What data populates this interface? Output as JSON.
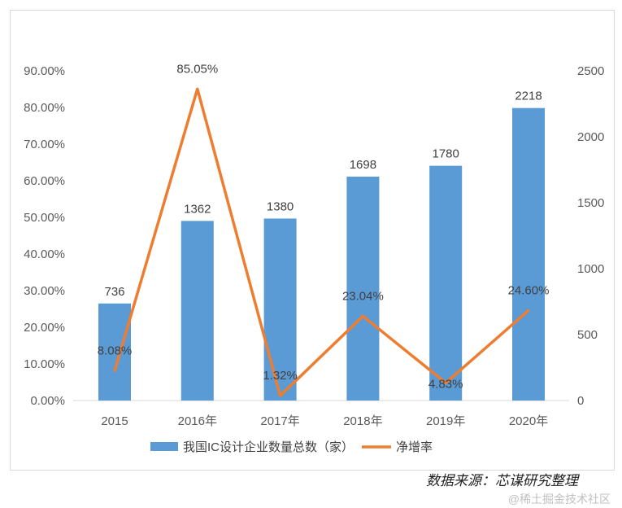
{
  "chart_data": {
    "type": "bar+line",
    "categories": [
      "2015",
      "2016年",
      "2017年",
      "2018年",
      "2019年",
      "2020年"
    ],
    "series": [
      {
        "name": "我国IC设计企业数量总数（家）",
        "type": "bar",
        "axis": "right",
        "values": [
          736,
          1362,
          1380,
          1698,
          1780,
          2218
        ],
        "labels": [
          "736",
          "1362",
          "1380",
          "1698",
          "1780",
          "2218"
        ],
        "color": "#5b9bd5"
      },
      {
        "name": "净增率",
        "type": "line",
        "axis": "left",
        "values": [
          8.08,
          85.05,
          1.32,
          23.04,
          4.83,
          24.6
        ],
        "labels": [
          "8.08%",
          "85.05%",
          "1.32%",
          "23.04%",
          "4.83%",
          "24.60%"
        ],
        "color": "#ed7d31"
      }
    ],
    "left_axis": {
      "ylim": [
        0,
        90
      ],
      "ticks": [
        "0.00%",
        "10.00%",
        "20.00%",
        "30.00%",
        "40.00%",
        "50.00%",
        "60.00%",
        "70.00%",
        "80.00%",
        "90.00%"
      ]
    },
    "right_axis": {
      "ylim": [
        0,
        2500
      ],
      "ticks": [
        "0",
        "500",
        "1000",
        "1500",
        "2000",
        "2500"
      ]
    },
    "grid": false,
    "legend": "bottom"
  },
  "source": "数据来源：芯谋研究整理",
  "watermark": "@稀土掘金技术社区"
}
